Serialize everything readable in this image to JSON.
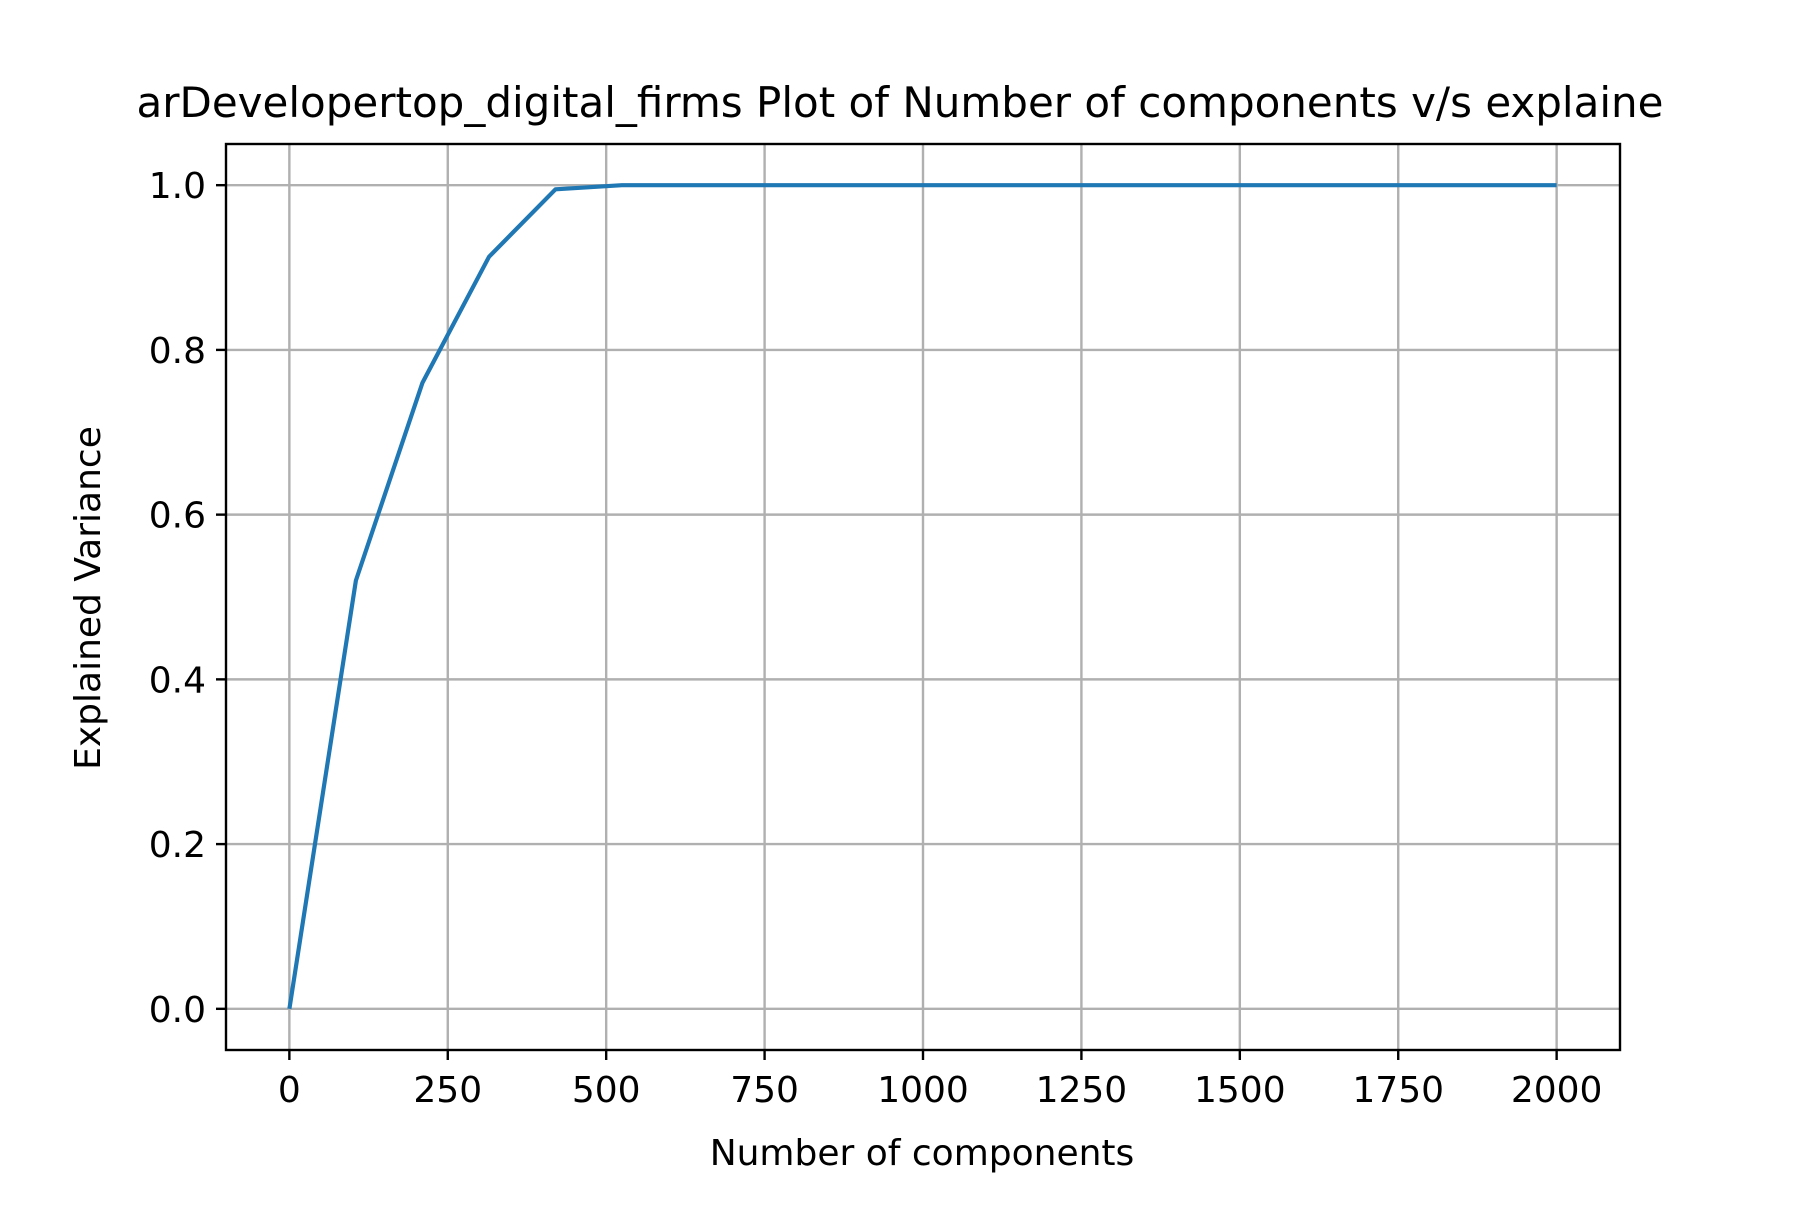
{
  "chart_data": {
    "type": "line",
    "title": "arDevelopertop_digital_firms Plot of Number of components v/s explaine",
    "xlabel": "Number of components",
    "ylabel": "Explained Variance",
    "xlim": [
      -100,
      2100
    ],
    "ylim": [
      -0.05,
      1.05
    ],
    "x_ticks": [
      0,
      250,
      500,
      750,
      1000,
      1250,
      1500,
      1750,
      2000
    ],
    "x_tick_labels": [
      "0",
      "250",
      "500",
      "750",
      "1000",
      "1250",
      "1500",
      "1750",
      "2000"
    ],
    "y_ticks": [
      0.0,
      0.2,
      0.4,
      0.6,
      0.8,
      1.0
    ],
    "y_tick_labels": [
      "0.0",
      "0.2",
      "0.4",
      "0.6",
      "0.8",
      "1.0"
    ],
    "grid": true,
    "series": [
      {
        "color": "#1f77b4",
        "x": [
          0,
          105,
          210,
          315,
          420,
          525,
          630,
          735,
          840,
          945,
          1050,
          1155,
          1260,
          1365,
          1470,
          1575,
          1680,
          1785,
          1890,
          2000
        ],
        "y": [
          0.0,
          0.52,
          0.76,
          0.913,
          0.995,
          1.0,
          1.0,
          1.0,
          1.0,
          1.0,
          1.0,
          1.0,
          1.0,
          1.0,
          1.0,
          1.0,
          1.0,
          1.0,
          1.0,
          1.0
        ]
      }
    ]
  }
}
